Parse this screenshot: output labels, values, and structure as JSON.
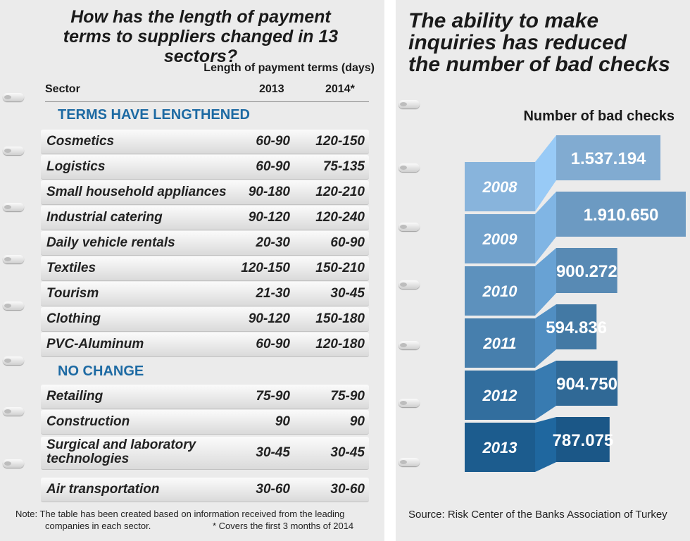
{
  "left": {
    "title_line1": "How has the length of payment",
    "title_line2": "terms to suppliers changed in 13 sectors?",
    "group_header": "Length of payment terms (days)",
    "col_sector": "Sector",
    "col_2013": "2013",
    "col_2014": "2014*",
    "sections": [
      {
        "label": "TERMS HAVE LENGTHENED",
        "rows": [
          {
            "sector": "Cosmetics",
            "y2013": "60-90",
            "y2014": "120-150"
          },
          {
            "sector": "Logistics",
            "y2013": "60-90",
            "y2014": "75-135"
          },
          {
            "sector": "Small household appliances",
            "y2013": "90-180",
            "y2014": "120-210"
          },
          {
            "sector": "Industrial catering",
            "y2013": "90-120",
            "y2014": "120-240"
          },
          {
            "sector": "Daily vehicle rentals",
            "y2013": "20-30",
            "y2014": "60-90"
          },
          {
            "sector": "Textiles",
            "y2013": "120-150",
            "y2014": "150-210"
          },
          {
            "sector": "Tourism",
            "y2013": "21-30",
            "y2014": "30-45"
          },
          {
            "sector": "Clothing",
            "y2013": "90-120",
            "y2014": "150-180"
          },
          {
            "sector": "PVC-Aluminum",
            "y2013": "60-90",
            "y2014": "120-180"
          }
        ]
      },
      {
        "label": "NO CHANGE",
        "rows": [
          {
            "sector": "Retailing",
            "y2013": "75-90",
            "y2014": "75-90"
          },
          {
            "sector": "Construction",
            "y2013": "90",
            "y2014": "90"
          },
          {
            "sector": "Surgical and laboratory technologies",
            "y2013": "30-45",
            "y2014": "30-45"
          },
          {
            "sector": "Air transportation",
            "y2013": "30-60",
            "y2014": "30-60"
          }
        ]
      }
    ],
    "note_line1": "Note: The table has been created based on information received from the leading",
    "note_line2": "companies in each sector.",
    "note_star": "* Covers the first 3 months of 2014"
  },
  "right": {
    "title_line1": "The ability to make",
    "title_line2": "inquiries has reduced",
    "title_line3": "the number of bad checks",
    "source": "Source:  Risk Center of the Banks Association of Turkey"
  },
  "chart_data": {
    "type": "bar",
    "title": "Number of bad checks",
    "categories": [
      "2008",
      "2009",
      "2010",
      "2011",
      "2012",
      "2013"
    ],
    "values": [
      1537194,
      1910650,
      900272,
      594836,
      904750,
      787075
    ],
    "value_labels": [
      "1.537.194",
      "1.910.650",
      "900.272",
      "594.836",
      "904.750",
      "787.075"
    ],
    "colors": {
      "light": "#8bb3da",
      "dark": "#1d5e8f",
      "section": "#1d6aa3"
    }
  }
}
